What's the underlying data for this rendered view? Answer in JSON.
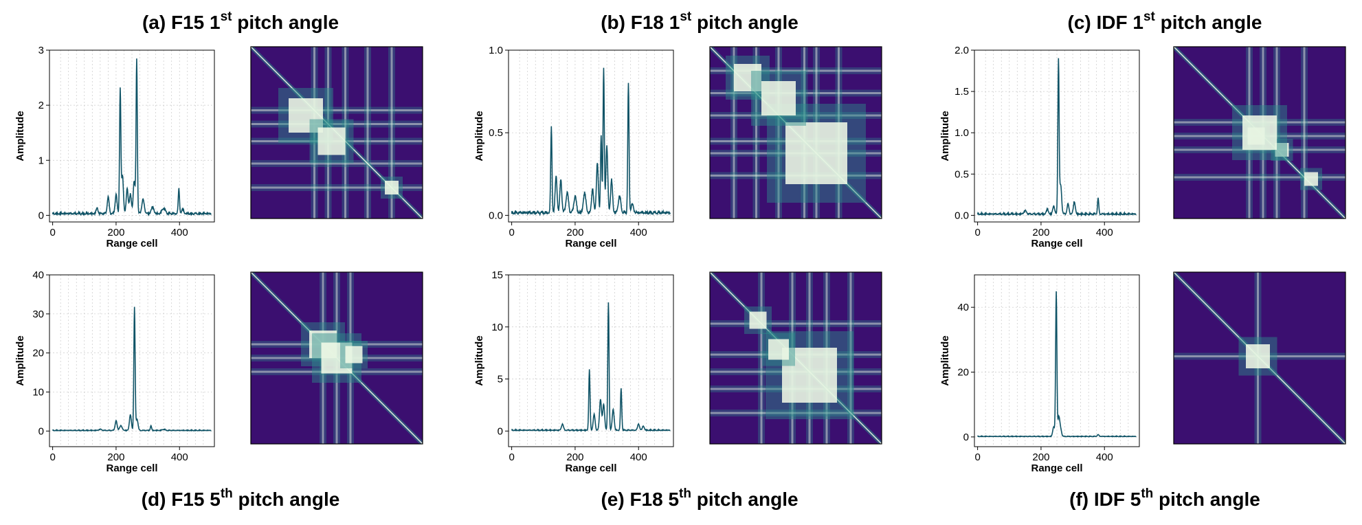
{
  "colors": {
    "line": "#0f5366",
    "matrix_bg": "#3b0f70",
    "matrix_mid": "#2d8f8c",
    "matrix_hot": "#f6fde9",
    "grid": "#c8c8c8"
  },
  "chart_data": [
    {
      "id": "a",
      "type": "line",
      "title_prefix": "(a) F15 1",
      "title_sup": "st",
      "title_suffix": " pitch angle",
      "xlabel": "Range cell",
      "ylabel": "Amplitude",
      "xlim": [
        -10,
        510
      ],
      "ylim": [
        -0.12,
        3.0
      ],
      "xticks": [
        0,
        200,
        400
      ],
      "yticks": [
        0,
        1,
        2,
        3
      ],
      "baseline": 0.02,
      "peaks": [
        [
          140,
          0.1,
          3
        ],
        [
          175,
          0.3,
          3
        ],
        [
          200,
          0.35,
          3
        ],
        [
          213,
          2.25,
          2
        ],
        [
          220,
          0.7,
          3
        ],
        [
          235,
          0.45,
          3
        ],
        [
          245,
          0.35,
          3
        ],
        [
          257,
          0.6,
          3
        ],
        [
          265,
          2.8,
          2
        ],
        [
          285,
          0.25,
          4
        ],
        [
          315,
          0.12,
          4
        ],
        [
          350,
          0.1,
          5
        ],
        [
          398,
          0.45,
          2
        ],
        [
          410,
          0.08,
          3
        ]
      ],
      "matrix": {
        "hot": [
          [
            0.32,
            0.4,
            0.1
          ],
          [
            0.47,
            0.55,
            0.08
          ],
          [
            0.82,
            0.82,
            0.04
          ]
        ],
        "lines": [
          0.37,
          0.45,
          0.55,
          0.68,
          0.82
        ]
      }
    },
    {
      "id": "b",
      "type": "line",
      "title_prefix": "(b) F18 1",
      "title_sup": "st",
      "title_suffix": " pitch angle",
      "xlabel": "Range cell",
      "ylabel": "Amplitude",
      "xlim": [
        -10,
        510
      ],
      "ylim": [
        -0.04,
        1.0
      ],
      "xticks": [
        0,
        200,
        400
      ],
      "yticks": [
        0.0,
        0.5,
        1.0
      ],
      "ytick_labels": [
        "0.0",
        "0.5",
        "1.0"
      ],
      "baseline": 0.01,
      "peaks": [
        [
          125,
          0.52,
          2
        ],
        [
          140,
          0.22,
          3
        ],
        [
          155,
          0.2,
          3
        ],
        [
          175,
          0.12,
          4
        ],
        [
          200,
          0.1,
          4
        ],
        [
          230,
          0.12,
          4
        ],
        [
          255,
          0.15,
          3
        ],
        [
          270,
          0.3,
          3
        ],
        [
          282,
          0.47,
          2
        ],
        [
          290,
          0.88,
          2
        ],
        [
          300,
          0.4,
          3
        ],
        [
          315,
          0.2,
          3
        ],
        [
          340,
          0.1,
          4
        ],
        [
          368,
          0.78,
          2
        ],
        [
          380,
          0.05,
          4
        ]
      ],
      "matrix": {
        "hot": [
          [
            0.22,
            0.18,
            0.08
          ],
          [
            0.62,
            0.62,
            0.18
          ],
          [
            0.4,
            0.3,
            0.1
          ]
        ],
        "lines": [
          0.14,
          0.27,
          0.4,
          0.55,
          0.62,
          0.75
        ]
      }
    },
    {
      "id": "c",
      "type": "line",
      "title_prefix": "(c) IDF 1",
      "title_sup": "st",
      "title_suffix": " pitch angle",
      "xlabel": "Range cell",
      "ylabel": "Amplitude",
      "xlim": [
        -10,
        510
      ],
      "ylim": [
        -0.08,
        2.0
      ],
      "xticks": [
        0,
        200,
        400
      ],
      "yticks": [
        0.0,
        0.5,
        1.0,
        1.5,
        2.0
      ],
      "ytick_labels": [
        "0.0",
        "0.5",
        "1.0",
        "1.5",
        "2.0"
      ],
      "baseline": 0.01,
      "peaks": [
        [
          150,
          0.04,
          4
        ],
        [
          220,
          0.06,
          3
        ],
        [
          240,
          0.1,
          3
        ],
        [
          255,
          1.87,
          2
        ],
        [
          262,
          0.35,
          3
        ],
        [
          285,
          0.12,
          3
        ],
        [
          305,
          0.15,
          3
        ],
        [
          380,
          0.19,
          2
        ]
      ],
      "matrix": {
        "hot": [
          [
            0.48,
            0.52,
            0.05
          ],
          [
            0.63,
            0.6,
            0.04
          ],
          [
            0.8,
            0.77,
            0.04
          ],
          [
            0.5,
            0.5,
            0.1
          ]
        ],
        "lines": [
          0.44,
          0.52,
          0.6,
          0.76
        ]
      }
    },
    {
      "id": "d",
      "type": "line",
      "title_prefix": "(d) F15 5",
      "title_sup": "th",
      "title_suffix": " pitch angle",
      "xlabel": "Range cell",
      "ylabel": "Amplitude",
      "xlim": [
        -10,
        510
      ],
      "ylim": [
        -4,
        40
      ],
      "xticks": [
        0,
        200,
        400
      ],
      "yticks": [
        0,
        10,
        20,
        30,
        40
      ],
      "baseline": 0.1,
      "peaks": [
        [
          150,
          0.3,
          4
        ],
        [
          200,
          2.5,
          3
        ],
        [
          215,
          1.2,
          4
        ],
        [
          245,
          4.0,
          3
        ],
        [
          258,
          31.5,
          2
        ],
        [
          266,
          3.0,
          3
        ],
        [
          310,
          1.2,
          2
        ],
        [
          350,
          0.3,
          4
        ]
      ],
      "matrix": {
        "hot": [
          [
            0.42,
            0.42,
            0.08
          ],
          [
            0.5,
            0.5,
            0.09
          ],
          [
            0.6,
            0.48,
            0.05
          ]
        ],
        "lines": [
          0.42,
          0.5,
          0.58
        ]
      }
    },
    {
      "id": "e",
      "type": "line",
      "title_prefix": "(e) F18 5",
      "title_sup": "th",
      "title_suffix": " pitch angle",
      "xlabel": "Range cell",
      "ylabel": "Amplitude",
      "xlim": [
        -10,
        510
      ],
      "ylim": [
        -1.5,
        15
      ],
      "xticks": [
        0,
        200,
        400
      ],
      "yticks": [
        0,
        5,
        10,
        15
      ],
      "baseline": 0.05,
      "peaks": [
        [
          160,
          0.6,
          3
        ],
        [
          245,
          5.8,
          2
        ],
        [
          260,
          1.5,
          3
        ],
        [
          280,
          3.0,
          3
        ],
        [
          290,
          2.5,
          3
        ],
        [
          305,
          12.3,
          2
        ],
        [
          320,
          2.0,
          3
        ],
        [
          345,
          4.0,
          2
        ],
        [
          400,
          0.6,
          3
        ],
        [
          415,
          0.4,
          3
        ]
      ],
      "matrix": {
        "hot": [
          [
            0.58,
            0.6,
            0.16
          ],
          [
            0.28,
            0.28,
            0.05
          ],
          [
            0.4,
            0.45,
            0.06
          ]
        ],
        "lines": [
          0.3,
          0.48,
          0.58,
          0.68,
          0.82
        ]
      }
    },
    {
      "id": "f",
      "type": "line",
      "title_prefix": "(f) IDF 5",
      "title_sup": "th",
      "title_suffix": " pitch angle",
      "xlabel": "Range cell",
      "ylabel": "Amplitude",
      "xlim": [
        -10,
        510
      ],
      "ylim": [
        -3,
        50
      ],
      "xticks": [
        0,
        200,
        400
      ],
      "yticks": [
        0,
        20,
        40
      ],
      "baseline": 0.1,
      "peaks": [
        [
          240,
          3.0,
          3
        ],
        [
          248,
          44.5,
          2
        ],
        [
          256,
          6.0,
          3
        ],
        [
          262,
          2.0,
          3
        ],
        [
          380,
          0.5,
          3
        ]
      ],
      "matrix": {
        "hot": [
          [
            0.49,
            0.49,
            0.07
          ]
        ],
        "lines": [
          0.49
        ]
      }
    }
  ]
}
